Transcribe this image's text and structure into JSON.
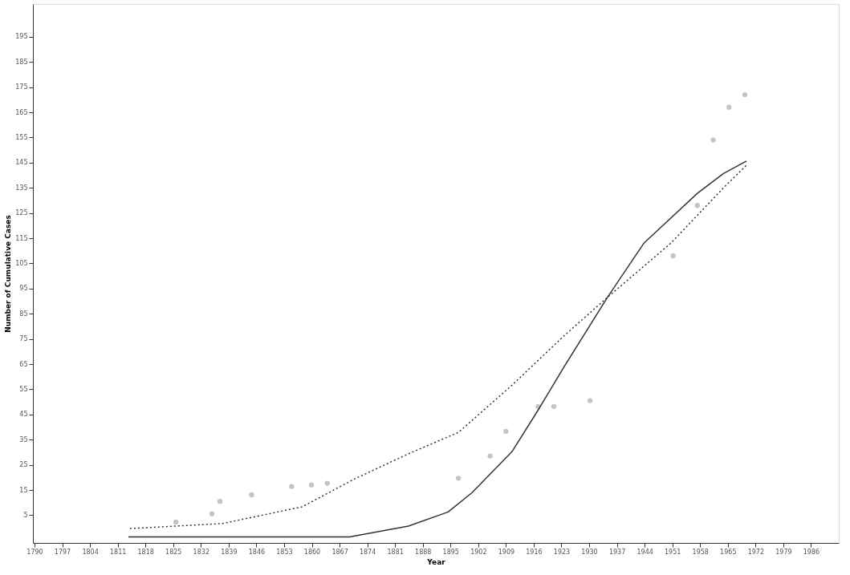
{
  "chart_data": {
    "type": "line",
    "xlabel": "Year",
    "ylabel": "Number of Cumulative Cases",
    "xlim": [
      1789.6,
      1993
    ],
    "xticks": [
      1790,
      1797,
      1804,
      1811,
      1818,
      1825,
      1832,
      1839,
      1846,
      1853,
      1860,
      1867,
      1874,
      1881,
      1888,
      1895,
      1902,
      1909,
      1916,
      1923,
      1930,
      1937,
      1944,
      1951,
      1958,
      1965,
      1972,
      1979,
      1986
    ],
    "ylim": [
      -6,
      208
    ],
    "yticks": [
      5,
      15,
      25,
      35,
      45,
      55,
      65,
      75,
      85,
      95,
      105,
      115,
      125,
      135,
      145,
      155,
      165,
      175,
      185,
      195
    ],
    "grid": false,
    "series": [
      {
        "type": "scatter",
        "color": "#c4c4c4",
        "marker": "circle",
        "x": [
          1825.7,
          1834.8,
          1836.8,
          1844.8,
          1854.9,
          1859.9,
          1863.9,
          1897,
          1905,
          1909,
          1917.1,
          1921.1,
          1930.2,
          1951.2,
          1957.3,
          1961.3,
          1965.3,
          1969.3
        ],
        "values": [
          2.3,
          5.6,
          10.5,
          13.1,
          16.4,
          17,
          17.7,
          19.7,
          28.5,
          38.3,
          48.2,
          48.2,
          50.5,
          108,
          128,
          154,
          167,
          172
        ]
      },
      {
        "color": "#333333",
        "line_style": "solid",
        "x": [
          1813.7,
          1869.5,
          1884.4,
          1894.4,
          1900.4,
          1910.5,
          1917.1,
          1923.7,
          1934.6,
          1943.8,
          1957.3,
          1963.9,
          1969.7
        ],
        "values": [
          -3.6,
          -3.6,
          0.7,
          6.3,
          13.9,
          30.2,
          46.7,
          64,
          91.5,
          113,
          132.8,
          140.7,
          145.6
        ]
      },
      {
        "color": "#333333",
        "line_style": "dotted",
        "x": [
          1814.1,
          1837.4,
          1857.5,
          1870.9,
          1884.4,
          1897,
          1910.5,
          1923.7,
          1934.6,
          1950.6,
          1963.9,
          1969.9
        ],
        "values": [
          -0.3,
          1.7,
          8.3,
          19.5,
          29.4,
          37.9,
          56.6,
          76.3,
          91.5,
          113,
          135,
          144.3
        ]
      }
    ]
  }
}
